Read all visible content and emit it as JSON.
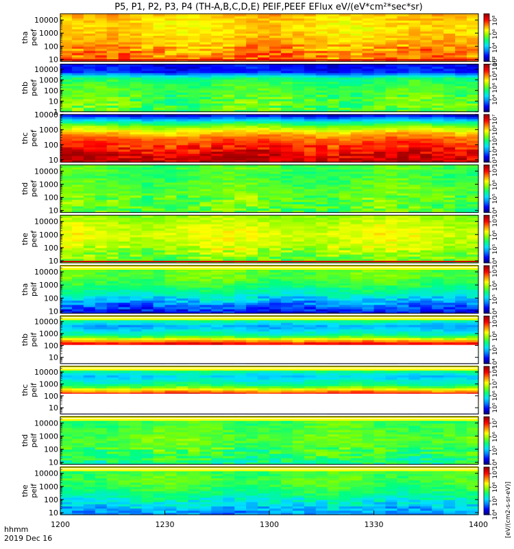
{
  "title": "P5, P1, P2, P3, P4 (TH-A,B,C,D,E) PEIF,PEEF EFlux eV/(eV*cm²*sec*sr)",
  "footer": {
    "time_format_label": "hhmm",
    "date_label": "2019 Dec 16"
  },
  "colorbar_unit_label": "[eV/(cm2-s-sr-eV)]",
  "colors": {
    "colormap": [
      "#000080",
      "#0000ff",
      "#0080ff",
      "#00e0ff",
      "#00ff80",
      "#80ff00",
      "#ffff00",
      "#ff8000",
      "#ff0000",
      "#a00000"
    ],
    "fill_value_color": "#ffff00",
    "frame": "#000000",
    "background": "#ffffff"
  },
  "chart_data": {
    "type": "heatmap",
    "x_axis": {
      "label": "hhmm",
      "tick_labels": [
        "1200",
        "1230",
        "1300",
        "1330",
        "1400"
      ],
      "range": [
        "12:00",
        "14:00"
      ]
    },
    "y_axis_scale": "log",
    "panels": [
      {
        "label": [
          "tha",
          "peef"
        ],
        "y_tick_labels": [
          "10",
          "100",
          "1000",
          "10000"
        ],
        "yrange": [
          7,
          30000
        ],
        "colorbar_tick_labels": [
          "10²",
          "10⁴",
          "10⁶",
          "10⁸"
        ],
        "colorbar_range": [
          100,
          1000000000
        ],
        "data_gap": null,
        "fill_bands": [],
        "color_index_profile": [
          7,
          7,
          6.6,
          6.4,
          6.2,
          6.2,
          6.5
        ],
        "low_energy_stripe": true
      },
      {
        "label": [
          "thb",
          "peef"
        ],
        "y_tick_labels": [
          "1",
          "10",
          "100",
          "1000",
          "10000"
        ],
        "yrange": [
          1,
          30000
        ],
        "colorbar_tick_labels": [
          "10⁴",
          "10⁶",
          "10⁸",
          "10¹⁰"
        ],
        "colorbar_range": [
          100,
          10000000000
        ],
        "data_gap": null,
        "fill_bands": [],
        "color_index_profile": [
          4.6,
          4.7,
          4.6,
          4.5,
          4.4,
          4.0,
          1.2,
          1.0
        ],
        "low_energy_stripe": false
      },
      {
        "label": [
          "thc",
          "peef"
        ],
        "y_tick_labels": [
          "10",
          "100",
          "1000",
          "10000"
        ],
        "yrange": [
          7,
          10000
        ],
        "colorbar_tick_labels": [
          "10³",
          "10⁴",
          "10⁵",
          "10⁶",
          "10⁷"
        ],
        "colorbar_range": [
          1000,
          30000000
        ],
        "data_gap": null,
        "fill_bands": [],
        "color_index_profile": [
          8.6,
          8.4,
          8.0,
          7.6,
          7.2,
          6.4,
          5.2,
          3.5,
          1.0
        ],
        "low_energy_stripe": false
      },
      {
        "label": [
          "thd",
          "peef"
        ],
        "y_tick_labels": [
          "10",
          "100",
          "1000",
          "10000"
        ],
        "yrange": [
          7,
          30000
        ],
        "colorbar_tick_labels": [
          "10⁴",
          "10⁵",
          "10⁶",
          "10⁷"
        ],
        "colorbar_range": [
          10000,
          30000000
        ],
        "data_gap": null,
        "fill_bands": [],
        "color_index_profile": [
          4.6,
          4.8,
          4.8,
          4.6,
          4.4,
          4.6
        ],
        "low_energy_stripe": false
      },
      {
        "label": [
          "the",
          "peef"
        ],
        "y_tick_labels": [
          "10",
          "100",
          "1000",
          "10000"
        ],
        "yrange": [
          7,
          30000
        ],
        "colorbar_tick_labels": [
          "10⁴",
          "10⁵",
          "10⁶",
          "10⁷"
        ],
        "colorbar_range": [
          10000,
          30000000
        ],
        "data_gap": null,
        "fill_bands": [],
        "color_index_profile": [
          4.8,
          5.2,
          5.6,
          5.8,
          5.6,
          5.2
        ],
        "low_energy_stripe": true
      },
      {
        "label": [
          "tha",
          "peif"
        ],
        "y_tick_labels": [
          "10",
          "100",
          "1000",
          "10000"
        ],
        "yrange": [
          7,
          30000
        ],
        "colorbar_tick_labels": [
          "10⁴",
          "10⁵",
          "10⁶",
          "10⁷"
        ],
        "colorbar_range": [
          10000,
          30000000
        ],
        "data_gap": null,
        "fill_bands": [
          0.97
        ],
        "color_index_profile": [
          1.0,
          2.2,
          3.5,
          4.3,
          4.8,
          4.6
        ],
        "low_energy_stripe": false
      },
      {
        "label": [
          "thb",
          "peif"
        ],
        "y_tick_labels": [
          "10",
          "100",
          "1000",
          "10000"
        ],
        "yrange": [
          3,
          30000
        ],
        "colorbar_tick_labels": [
          "10⁴",
          "10⁵",
          "10⁶",
          "10⁷"
        ],
        "colorbar_range": [
          10000,
          30000000
        ],
        "data_gap": [
          3,
          110
        ],
        "fill_bands": [
          0.97
        ],
        "color_index_profile": [
          1.0,
          4.3,
          8.6,
          4.0,
          2.5,
          4.6
        ],
        "low_energy_stripe": false
      },
      {
        "label": [
          "thc",
          "peif"
        ],
        "y_tick_labels": [
          "10",
          "100",
          "1000",
          "10000"
        ],
        "yrange": [
          3,
          30000
        ],
        "colorbar_tick_labels": [
          "10⁵",
          "10⁶",
          "10⁷",
          "10⁸"
        ],
        "colorbar_range": [
          30000,
          300000000
        ],
        "data_gap": [
          3,
          150
        ],
        "fill_bands": [
          0.97
        ],
        "color_index_profile": [
          1.0,
          6.2,
          8.6,
          4.2,
          2.8,
          4.6
        ],
        "low_energy_stripe": false
      },
      {
        "label": [
          "thd",
          "peif"
        ],
        "y_tick_labels": [
          "10",
          "100",
          "1000",
          "10000"
        ],
        "yrange": [
          7,
          30000
        ],
        "colorbar_tick_labels": [
          "10⁴",
          "10⁵",
          "10⁶",
          "10⁷"
        ],
        "colorbar_range": [
          10000,
          30000000
        ],
        "data_gap": null,
        "fill_bands": [
          0.97
        ],
        "color_index_profile": [
          4.0,
          4.4,
          4.8,
          4.6,
          4.3
        ],
        "low_energy_stripe": false
      },
      {
        "label": [
          "the",
          "peif"
        ],
        "y_tick_labels": [
          "10",
          "100",
          "1000",
          "10000"
        ],
        "yrange": [
          7,
          30000
        ],
        "colorbar_tick_labels": [
          "10⁴",
          "10⁵",
          "10⁶",
          "10⁷"
        ],
        "colorbar_range": [
          10000,
          30000000
        ],
        "data_gap": null,
        "fill_bands": [
          0.97
        ],
        "color_index_profile": [
          2.2,
          3.2,
          4.2,
          4.6,
          4.4
        ],
        "low_energy_stripe": false
      }
    ]
  }
}
